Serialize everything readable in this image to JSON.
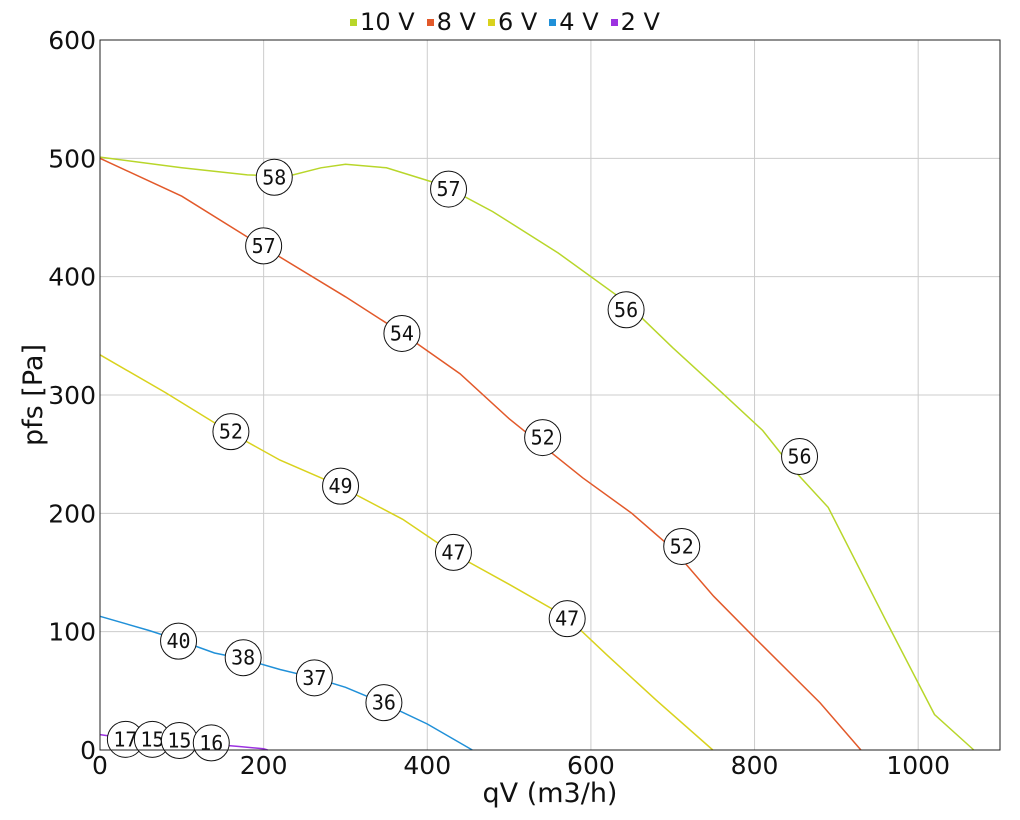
{
  "chart_data": {
    "type": "line",
    "xlabel": "qV (m3/h)",
    "ylabel": "pfs [Pa]",
    "xlim": [
      0,
      1100
    ],
    "ylim": [
      0,
      600
    ],
    "xticks": [
      0,
      200,
      400,
      600,
      800,
      1000
    ],
    "yticks": [
      0,
      100,
      200,
      300,
      400,
      500,
      600
    ],
    "grid": true,
    "legend_position": "top-center",
    "series": [
      {
        "name": "10 V",
        "color": "#b8d62a",
        "points": [
          [
            0,
            501
          ],
          [
            100,
            492
          ],
          [
            180,
            486
          ],
          [
            230,
            485
          ],
          [
            270,
            492
          ],
          [
            300,
            495
          ],
          [
            350,
            492
          ],
          [
            420,
            477
          ],
          [
            480,
            455
          ],
          [
            560,
            420
          ],
          [
            640,
            380
          ],
          [
            700,
            340
          ],
          [
            760,
            302
          ],
          [
            810,
            270
          ],
          [
            850,
            235
          ],
          [
            890,
            205
          ],
          [
            960,
            110
          ],
          [
            1020,
            30
          ],
          [
            1068,
            0
          ]
        ],
        "labels": [
          [
            213,
            484,
            "58"
          ],
          [
            426,
            474,
            "57"
          ],
          [
            643,
            372,
            "56"
          ],
          [
            855,
            248,
            "56"
          ]
        ]
      },
      {
        "name": "8 V",
        "color": "#e2592a",
        "points": [
          [
            0,
            500
          ],
          [
            100,
            468
          ],
          [
            200,
            425
          ],
          [
            300,
            383
          ],
          [
            370,
            352
          ],
          [
            440,
            318
          ],
          [
            500,
            280
          ],
          [
            545,
            255
          ],
          [
            590,
            230
          ],
          [
            650,
            200
          ],
          [
            700,
            170
          ],
          [
            750,
            130
          ],
          [
            800,
            95
          ],
          [
            880,
            40
          ],
          [
            930,
            0
          ]
        ],
        "labels": [
          [
            200,
            426,
            "57"
          ],
          [
            369,
            352,
            "54"
          ],
          [
            541,
            264,
            "52"
          ],
          [
            711,
            172,
            "52"
          ]
        ]
      },
      {
        "name": "6 V",
        "color": "#d9d21d",
        "points": [
          [
            0,
            334
          ],
          [
            80,
            302
          ],
          [
            160,
            268
          ],
          [
            220,
            245
          ],
          [
            290,
            224
          ],
          [
            370,
            195
          ],
          [
            432,
            166
          ],
          [
            500,
            140
          ],
          [
            571,
            112
          ],
          [
            620,
            80
          ],
          [
            680,
            42
          ],
          [
            749,
            0
          ]
        ],
        "labels": [
          [
            160,
            269,
            "52"
          ],
          [
            294,
            223,
            "49"
          ],
          [
            432,
            167,
            "47"
          ],
          [
            571,
            111,
            "47"
          ]
        ]
      },
      {
        "name": "4 V",
        "color": "#2090d8",
        "points": [
          [
            0,
            113
          ],
          [
            60,
            101
          ],
          [
            96,
            93
          ],
          [
            140,
            82
          ],
          [
            175,
            77
          ],
          [
            220,
            68
          ],
          [
            262,
            61
          ],
          [
            300,
            53
          ],
          [
            345,
            40
          ],
          [
            400,
            22
          ],
          [
            455,
            0
          ]
        ],
        "labels": [
          [
            96,
            92,
            "40"
          ],
          [
            175,
            78,
            "38"
          ],
          [
            262,
            61,
            "37"
          ],
          [
            347,
            40,
            "36"
          ]
        ]
      },
      {
        "name": "2 V",
        "color": "#9c32e0",
        "points": [
          [
            0,
            13
          ],
          [
            31,
            10
          ],
          [
            64,
            9
          ],
          [
            97,
            8
          ],
          [
            136,
            5
          ],
          [
            170,
            3
          ],
          [
            200,
            1
          ],
          [
            205,
            0
          ]
        ],
        "labels": [
          [
            31,
            9,
            "17"
          ],
          [
            64,
            9,
            "15"
          ],
          [
            97,
            8,
            "15"
          ],
          [
            136,
            6,
            "16"
          ]
        ]
      }
    ]
  }
}
